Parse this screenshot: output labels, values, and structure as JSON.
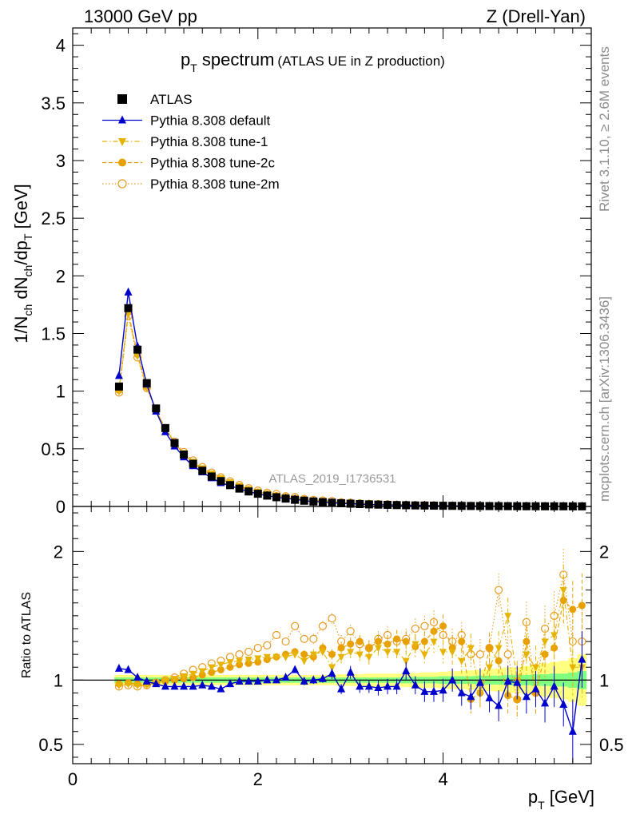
{
  "header": {
    "left": "13000 GeV pp",
    "right": "Z (Drell-Yan)"
  },
  "side_labels": {
    "rivet": "Rivet 3.1.10, ≥ 2.6M events",
    "mcplots": "mcplots.cern.ch [arXiv:1306.3436]"
  },
  "analysis_id": "ATLAS_2019_I1736531",
  "chart_data": {
    "type": "scatter",
    "title_main": "p",
    "title_main_sub": "T",
    "title_main_rest": " spectrum",
    "title_sub": "(ATLAS UE in Z production)",
    "ylabel": "1/N_ch dN_ch/dp_T [GeV]",
    "ylabel_parts": {
      "a": "1/N",
      "a_sub": "ch",
      "b": " dN",
      "b_sub": "ch",
      "c": "/dp",
      "c_sub": "T",
      "d": " [GeV]"
    },
    "xlabel_parts": {
      "a": "p",
      "a_sub": "T",
      "b": " [GeV]"
    },
    "ratio_ylabel": "Ratio to ATLAS",
    "xlim": [
      0,
      5.6
    ],
    "ylim_main": [
      0,
      4.15
    ],
    "ylim_ratio": [
      0.35,
      2.35
    ],
    "x_ticks": [
      "0",
      "2",
      "4"
    ],
    "x_tick_values": [
      0,
      2,
      4
    ],
    "y_ticks_main": [
      "0",
      "0.5",
      "1",
      "1.5",
      "2",
      "2.5",
      "3",
      "3.5",
      "4"
    ],
    "y_tick_values_main": [
      0,
      0.5,
      1,
      1.5,
      2,
      2.5,
      3,
      3.5,
      4
    ],
    "y_ticks_ratio": [
      "0.5",
      "1",
      "2"
    ],
    "y_tick_values_ratio": [
      0.5,
      1,
      2
    ],
    "x": [
      0.5,
      0.6,
      0.7,
      0.8,
      0.9,
      1.0,
      1.1,
      1.2,
      1.3,
      1.4,
      1.5,
      1.6,
      1.7,
      1.8,
      1.9,
      2.0,
      2.1,
      2.2,
      2.3,
      2.4,
      2.5,
      2.6,
      2.7,
      2.8,
      2.9,
      3.0,
      3.1,
      3.2,
      3.3,
      3.4,
      3.5,
      3.6,
      3.7,
      3.8,
      3.9,
      4.0,
      4.1,
      4.2,
      4.3,
      4.4,
      4.5,
      4.6,
      4.7,
      4.8,
      4.9,
      5.0,
      5.1,
      5.2,
      5.3,
      5.4,
      5.5
    ],
    "atlas": [
      1.04,
      1.72,
      1.36,
      1.07,
      0.85,
      0.68,
      0.55,
      0.45,
      0.37,
      0.31,
      0.26,
      0.22,
      0.185,
      0.155,
      0.13,
      0.11,
      0.094,
      0.08,
      0.068,
      0.058,
      0.05,
      0.043,
      0.037,
      0.032,
      0.028,
      0.024,
      0.021,
      0.018,
      0.016,
      0.014,
      0.012,
      0.0105,
      0.009,
      0.008,
      0.007,
      0.006,
      0.0053,
      0.0047,
      0.0041,
      0.0036,
      0.0032,
      0.0028,
      0.0025,
      0.0022,
      0.0019,
      0.0017,
      0.0015,
      0.0013,
      0.0012,
      0.001,
      0.0009
    ],
    "band_inner": [
      0.02,
      0.02,
      0.02,
      0.02,
      0.02,
      0.02,
      0.02,
      0.02,
      0.02,
      0.02,
      0.02,
      0.02,
      0.02,
      0.02,
      0.02,
      0.02,
      0.02,
      0.02,
      0.02,
      0.02,
      0.02,
      0.02,
      0.02,
      0.02,
      0.02,
      0.02,
      0.02,
      0.02,
      0.02,
      0.02,
      0.02,
      0.025,
      0.025,
      0.025,
      0.025,
      0.03,
      0.03,
      0.03,
      0.03,
      0.035,
      0.035,
      0.035,
      0.04,
      0.04,
      0.04,
      0.045,
      0.045,
      0.05,
      0.05,
      0.06,
      0.07
    ],
    "band_outer": [
      0.04,
      0.04,
      0.04,
      0.04,
      0.04,
      0.04,
      0.04,
      0.04,
      0.04,
      0.04,
      0.04,
      0.04,
      0.04,
      0.04,
      0.04,
      0.04,
      0.04,
      0.04,
      0.04,
      0.04,
      0.04,
      0.04,
      0.04,
      0.04,
      0.045,
      0.045,
      0.045,
      0.05,
      0.05,
      0.05,
      0.05,
      0.055,
      0.055,
      0.06,
      0.06,
      0.065,
      0.07,
      0.07,
      0.075,
      0.08,
      0.085,
      0.09,
      0.1,
      0.1,
      0.11,
      0.12,
      0.13,
      0.14,
      0.15,
      0.17,
      0.2
    ],
    "series": [
      {
        "name": "Pythia 8.308 default",
        "color": "#0000cc",
        "marker": "triangle-up",
        "line": "solid",
        "ratio": [
          1.09,
          1.08,
          1.02,
          0.99,
          0.97,
          0.95,
          0.95,
          0.95,
          0.95,
          0.96,
          0.95,
          0.93,
          0.97,
          0.99,
          0.99,
          0.99,
          1.0,
          1.0,
          1.02,
          1.08,
          0.99,
          1.0,
          1.01,
          1.05,
          0.93,
          1.06,
          0.95,
          0.95,
          0.94,
          0.95,
          0.95,
          1.07,
          0.96,
          0.91,
          0.91,
          0.92,
          1.0,
          0.9,
          0.87,
          0.98,
          0.86,
          0.8,
          0.99,
          0.98,
          0.87,
          0.93,
          0.82,
          0.95,
          0.81,
          0.6,
          1.16
        ],
        "ratio_err": [
          0.01,
          0.01,
          0.01,
          0.01,
          0.01,
          0.01,
          0.01,
          0.01,
          0.01,
          0.01,
          0.01,
          0.01,
          0.01,
          0.015,
          0.015,
          0.015,
          0.02,
          0.02,
          0.02,
          0.02,
          0.03,
          0.03,
          0.03,
          0.04,
          0.04,
          0.05,
          0.05,
          0.05,
          0.06,
          0.06,
          0.06,
          0.07,
          0.07,
          0.08,
          0.08,
          0.09,
          0.09,
          0.1,
          0.1,
          0.11,
          0.11,
          0.12,
          0.12,
          0.13,
          0.13,
          0.14,
          0.15,
          0.16,
          0.17,
          0.25,
          0.22
        ]
      },
      {
        "name": "Pythia 8.308 tune-1",
        "color": "#e6b400",
        "marker": "triangle-down",
        "line": "dashdot",
        "ratio": [
          0.96,
          0.97,
          0.96,
          0.96,
          0.98,
          1.0,
          1.01,
          1.03,
          1.05,
          1.07,
          1.1,
          1.12,
          1.14,
          1.15,
          1.16,
          1.17,
          1.18,
          1.18,
          1.18,
          1.2,
          1.15,
          1.2,
          1.22,
          1.1,
          1.18,
          1.22,
          1.2,
          1.18,
          1.25,
          1.22,
          1.22,
          1.15,
          1.28,
          1.2,
          1.3,
          1.22,
          1.22,
          1.15,
          1.25,
          0.9,
          1.1,
          1.25,
          1.5,
          1.0,
          1.2,
          1.1,
          1.3,
          1.35,
          1.7,
          1.1,
          1.1
        ],
        "ratio_err": [
          0.01,
          0.01,
          0.01,
          0.01,
          0.01,
          0.01,
          0.01,
          0.01,
          0.01,
          0.01,
          0.015,
          0.015,
          0.015,
          0.02,
          0.02,
          0.02,
          0.02,
          0.03,
          0.03,
          0.03,
          0.03,
          0.04,
          0.04,
          0.04,
          0.05,
          0.05,
          0.05,
          0.06,
          0.06,
          0.07,
          0.07,
          0.08,
          0.08,
          0.08,
          0.09,
          0.09,
          0.1,
          0.1,
          0.11,
          0.12,
          0.12,
          0.13,
          0.14,
          0.15,
          0.16,
          0.17,
          0.18,
          0.19,
          0.2,
          0.22,
          0.25
        ]
      },
      {
        "name": "Pythia 8.308 tune-2c",
        "color": "#e8a000",
        "marker": "circle",
        "line": "dashed",
        "ratio": [
          0.97,
          0.98,
          0.97,
          0.97,
          0.98,
          0.99,
          1.0,
          1.01,
          1.02,
          1.04,
          1.06,
          1.08,
          1.1,
          1.12,
          1.13,
          1.14,
          1.16,
          1.18,
          1.2,
          1.22,
          1.2,
          1.18,
          1.25,
          1.2,
          1.25,
          1.28,
          1.3,
          1.25,
          1.3,
          1.28,
          1.32,
          1.3,
          1.26,
          1.3,
          1.38,
          1.42,
          1.25,
          1.3,
          0.85,
          0.9,
          1.25,
          1.15,
          0.88,
          0.85,
          1.3,
          0.9,
          1.2,
          1.25,
          1.62,
          1.55,
          1.58
        ],
        "ratio_err": [
          0.01,
          0.01,
          0.01,
          0.01,
          0.01,
          0.01,
          0.01,
          0.01,
          0.01,
          0.01,
          0.015,
          0.015,
          0.015,
          0.02,
          0.02,
          0.02,
          0.02,
          0.03,
          0.03,
          0.03,
          0.03,
          0.04,
          0.04,
          0.04,
          0.05,
          0.05,
          0.05,
          0.06,
          0.06,
          0.07,
          0.07,
          0.08,
          0.08,
          0.08,
          0.09,
          0.09,
          0.1,
          0.1,
          0.11,
          0.12,
          0.12,
          0.13,
          0.14,
          0.15,
          0.16,
          0.17,
          0.18,
          0.19,
          0.2,
          0.22,
          0.25
        ]
      },
      {
        "name": "Pythia 8.308 tune-2m",
        "color": "#e89b20",
        "marker": "open-circle",
        "line": "dotted",
        "ratio": [
          0.95,
          0.96,
          0.95,
          0.96,
          0.98,
          1.0,
          1.02,
          1.05,
          1.08,
          1.1,
          1.13,
          1.15,
          1.18,
          1.2,
          1.22,
          1.25,
          1.27,
          1.35,
          1.3,
          1.42,
          1.32,
          1.32,
          1.42,
          1.48,
          1.3,
          1.38,
          1.28,
          1.25,
          1.32,
          1.35,
          1.3,
          1.32,
          1.4,
          1.42,
          1.45,
          1.35,
          1.3,
          1.35,
          1.2,
          1.2,
          1.25,
          1.7,
          1.2,
          0.85,
          1.45,
          0.9,
          1.4,
          1.5,
          1.82,
          1.3,
          1.3
        ],
        "ratio_err": [
          0.01,
          0.01,
          0.01,
          0.01,
          0.01,
          0.01,
          0.01,
          0.01,
          0.01,
          0.01,
          0.015,
          0.015,
          0.015,
          0.02,
          0.02,
          0.02,
          0.02,
          0.03,
          0.03,
          0.03,
          0.03,
          0.04,
          0.04,
          0.04,
          0.05,
          0.05,
          0.05,
          0.06,
          0.06,
          0.07,
          0.07,
          0.08,
          0.08,
          0.08,
          0.09,
          0.09,
          0.1,
          0.1,
          0.11,
          0.12,
          0.12,
          0.13,
          0.14,
          0.15,
          0.16,
          0.17,
          0.18,
          0.19,
          0.2,
          0.22,
          0.25
        ]
      }
    ],
    "legend": [
      {
        "label": "ATLAS",
        "marker": "square",
        "color": "#000000"
      },
      {
        "label": "Pythia 8.308 default",
        "marker": "triangle-up",
        "color": "#0000cc"
      },
      {
        "label": "Pythia 8.308 tune-1",
        "marker": "triangle-down",
        "color": "#e6b400"
      },
      {
        "label": "Pythia 8.308 tune-2c",
        "marker": "circle",
        "color": "#e8a000"
      },
      {
        "label": "Pythia 8.308 tune-2m",
        "marker": "open-circle",
        "color": "#e89b20"
      }
    ]
  }
}
